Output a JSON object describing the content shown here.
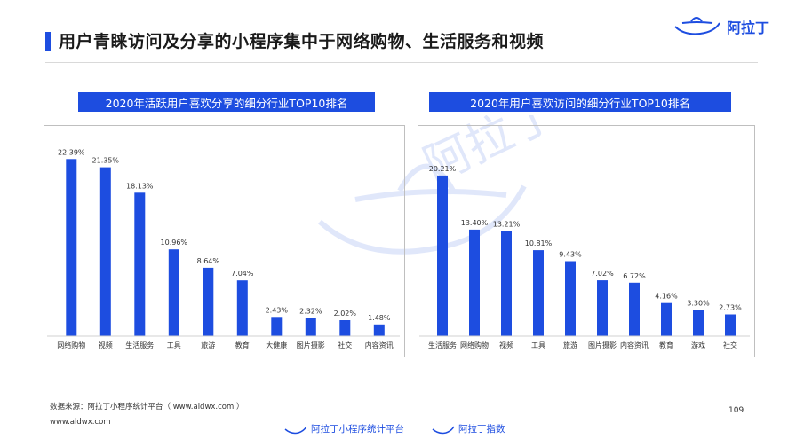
{
  "header": {
    "title": "用户青睐访问及分享的小程序集中于网络购物、生活服务和视频",
    "logo_text": "阿拉丁"
  },
  "colors": {
    "accent": "#1d4de0",
    "bar": "#1d4de0"
  },
  "chart_data": [
    {
      "type": "bar",
      "title": "2020年活跃用户喜欢分享的细分行业TOP10排名",
      "categories": [
        "网络购物",
        "视频",
        "生活服务",
        "工具",
        "旅游",
        "教育",
        "大健康",
        "图片摄影",
        "社交",
        "内容资讯"
      ],
      "values": [
        22.39,
        21.35,
        18.13,
        10.96,
        8.64,
        7.04,
        2.43,
        2.32,
        2.02,
        1.48
      ],
      "labels": [
        "22.39%",
        "21.35%",
        "18.13%",
        "10.96%",
        "8.64%",
        "7.04%",
        "2.43%",
        "2.32%",
        "2.02%",
        "1.48%"
      ],
      "ylim": [
        0,
        25
      ],
      "grid": false
    },
    {
      "type": "bar",
      "title": "2020年用户喜欢访问的细分行业TOP10排名",
      "categories": [
        "生活服务",
        "网络购物",
        "视频",
        "工具",
        "旅游",
        "图片摄影",
        "内容资讯",
        "教育",
        "游戏",
        "社交"
      ],
      "values": [
        20.21,
        13.4,
        13.21,
        10.81,
        9.43,
        7.02,
        6.72,
        4.16,
        3.3,
        2.73
      ],
      "labels": [
        "20.21%",
        "13.40%",
        "13.21%",
        "10.81%",
        "9.43%",
        "7.02%",
        "6.72%",
        "4.16%",
        "3.30%",
        "2.73%"
      ],
      "ylim": [
        0,
        25
      ],
      "grid": false
    }
  ],
  "footer": {
    "source": "数据来源：阿拉丁小程序统计平台（ www.aldwx.com ）",
    "site": "www.aldwx.com",
    "page_number": "109",
    "brand_1": "阿拉丁小程序统计平台",
    "brand_2": "阿拉丁指数"
  },
  "watermark_text": "阿拉丁"
}
